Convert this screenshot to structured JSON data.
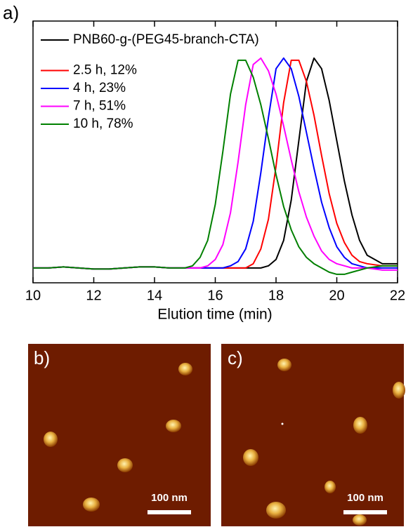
{
  "chart_data": {
    "type": "line",
    "panel_label": "a)",
    "xlabel": "Elution time (min)",
    "x": [
      10,
      10.5,
      11,
      11.5,
      12,
      12.5,
      13,
      13.5,
      14,
      14.5,
      15,
      15.25,
      15.5,
      15.75,
      16,
      16.25,
      16.5,
      16.75,
      17,
      17.25,
      17.5,
      17.75,
      18,
      18.25,
      18.5,
      18.75,
      19,
      19.25,
      19.5,
      19.75,
      20,
      20.25,
      20.5,
      20.75,
      21,
      21.5,
      22
    ],
    "series": [
      {
        "name": "PNB60-g-(PEG45-branch-CTA)",
        "color": "#000000",
        "values": [
          0.01,
          0.01,
          0.015,
          0.01,
          0.005,
          0.005,
          0.01,
          0.015,
          0.015,
          0.01,
          0.01,
          0.01,
          0.01,
          0.01,
          0.01,
          0.01,
          0.01,
          0.01,
          0.01,
          0.01,
          0.01,
          0.02,
          0.05,
          0.14,
          0.33,
          0.61,
          0.89,
          1.0,
          0.95,
          0.8,
          0.61,
          0.42,
          0.26,
          0.14,
          0.07,
          0.03,
          0.03
        ]
      },
      {
        "name": "2.5 h, 12%",
        "color": "#ff0000",
        "values": [
          0.01,
          0.01,
          0.015,
          0.01,
          0.005,
          0.005,
          0.01,
          0.015,
          0.015,
          0.01,
          0.01,
          0.01,
          0.01,
          0.01,
          0.01,
          0.01,
          0.01,
          0.01,
          0.01,
          0.03,
          0.1,
          0.24,
          0.49,
          0.79,
          0.99,
          0.99,
          0.89,
          0.73,
          0.54,
          0.36,
          0.22,
          0.13,
          0.07,
          0.04,
          0.03,
          0.02,
          0.02
        ]
      },
      {
        "name": "4 h, 23%",
        "color": "#0000ff",
        "values": [
          0.01,
          0.01,
          0.015,
          0.01,
          0.005,
          0.005,
          0.01,
          0.015,
          0.015,
          0.01,
          0.01,
          0.01,
          0.01,
          0.01,
          0.01,
          0.01,
          0.02,
          0.04,
          0.1,
          0.23,
          0.46,
          0.72,
          0.95,
          1.0,
          0.95,
          0.82,
          0.65,
          0.48,
          0.32,
          0.2,
          0.11,
          0.06,
          0.03,
          0.02,
          0.01,
          0.01,
          0.01
        ]
      },
      {
        "name": "7 h, 51%",
        "color": "#ff00ff",
        "values": [
          0.01,
          0.01,
          0.015,
          0.01,
          0.005,
          0.005,
          0.01,
          0.015,
          0.015,
          0.01,
          0.01,
          0.01,
          0.01,
          0.02,
          0.05,
          0.12,
          0.27,
          0.51,
          0.78,
          0.97,
          1.0,
          0.94,
          0.83,
          0.68,
          0.52,
          0.37,
          0.25,
          0.16,
          0.09,
          0.05,
          0.03,
          0.02,
          0.01,
          0.01,
          0.01,
          0.0,
          0.0
        ]
      },
      {
        "name": "10 h, 78%",
        "color": "#008000",
        "values": [
          0.01,
          0.01,
          0.015,
          0.01,
          0.005,
          0.005,
          0.01,
          0.015,
          0.015,
          0.01,
          0.01,
          0.02,
          0.06,
          0.14,
          0.31,
          0.56,
          0.83,
          0.99,
          0.99,
          0.91,
          0.78,
          0.62,
          0.45,
          0.3,
          0.19,
          0.11,
          0.06,
          0.03,
          0.01,
          -0.01,
          -0.02,
          -0.02,
          -0.01,
          0.0,
          0.01,
          0.02,
          0.02
        ]
      }
    ],
    "xlim": [
      10,
      22
    ],
    "xticks": [
      10,
      12,
      14,
      16,
      18,
      20,
      22
    ],
    "ylim": [
      -0.06,
      1.175
    ],
    "legend": "upper left"
  },
  "images": [
    {
      "panel_label": "b)",
      "scale_bar": "100 nm"
    },
    {
      "panel_label": "c)",
      "scale_bar": "100 nm"
    }
  ]
}
